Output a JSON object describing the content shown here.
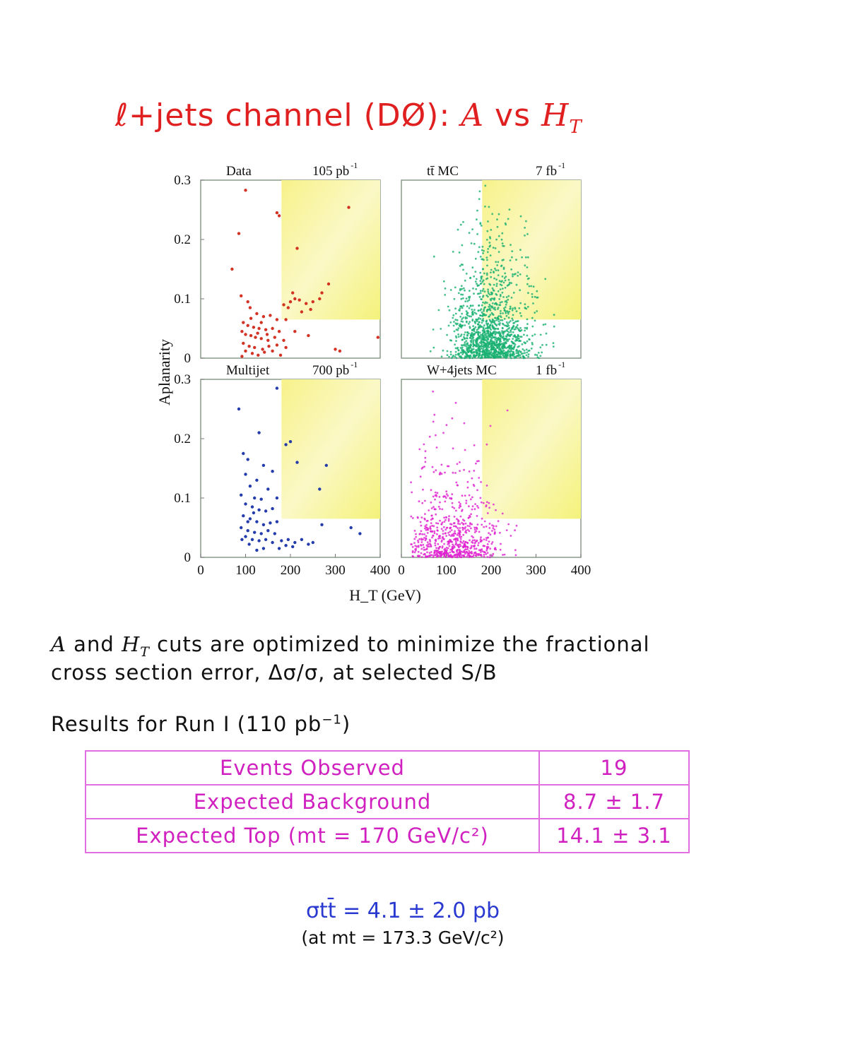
{
  "page": {
    "title": "ℓ+jets channel (DØ): A vs H",
    "title_parts": {
      "text": "ℓ+jets channel (DØ): ",
      "a": "A",
      "vs": " vs ",
      "h": "H",
      "sub": "T"
    },
    "description_line1": {
      "a": "A",
      "and": " and ",
      "h": "H",
      "sub": "T",
      "rest": " cuts are optimized to minimize the fractional"
    },
    "description_line2": "cross section error, Δσ/σ, at selected S/B",
    "results_heading": "Results for Run I (110 pb",
    "results_heading_sup": "−1",
    "results_heading_end": ")",
    "results_table": [
      {
        "label": "Events Observed",
        "value": "19"
      },
      {
        "label": "Expected Background",
        "value": "8.7 ± 1.7"
      },
      {
        "label": "Expected Top (mt = 170 GeV/c²)",
        "value": "14.1 ± 3.1"
      }
    ],
    "cross_section": "σtt̄ = 4.1 ± 2.0 pb",
    "cross_section_note": "(at mt = 173.3 GeV/c²)"
  },
  "colors": {
    "title": "#e02020",
    "table": "#d020c0",
    "xsec": "#2a3ad0",
    "cut_region": "#f4f27a"
  },
  "chart_data": {
    "type": "scatter",
    "xlabel": "H_T (GeV)",
    "ylabel": "Aplanarity",
    "x_ticks": [
      "0",
      "100",
      "200",
      "300",
      "400"
    ],
    "y_ticks": [
      "0",
      "0.1",
      "0.2",
      "0.3"
    ],
    "xlim": [
      0,
      400
    ],
    "ylim": [
      0,
      0.3
    ],
    "cut": {
      "ht_min": 180,
      "aplanarity_min": 0.065
    },
    "panels": [
      {
        "name": "Data",
        "lumi": "105 pb",
        "lumi_sup": "-1",
        "color": "#d02818",
        "points": [
          [
            100,
            0.283
          ],
          [
            85,
            0.21
          ],
          [
            70,
            0.15
          ],
          [
            90,
            0.105
          ],
          [
            105,
            0.095
          ],
          [
            110,
            0.085
          ],
          [
            125,
            0.075
          ],
          [
            140,
            0.07
          ],
          [
            155,
            0.072
          ],
          [
            170,
            0.065
          ],
          [
            95,
            0.06
          ],
          [
            105,
            0.055
          ],
          [
            118,
            0.052
          ],
          [
            130,
            0.05
          ],
          [
            145,
            0.048
          ],
          [
            160,
            0.05
          ],
          [
            175,
            0.045
          ],
          [
            92,
            0.045
          ],
          [
            100,
            0.04
          ],
          [
            112,
            0.038
          ],
          [
            122,
            0.035
          ],
          [
            135,
            0.033
          ],
          [
            150,
            0.03
          ],
          [
            165,
            0.035
          ],
          [
            185,
            0.03
          ],
          [
            95,
            0.025
          ],
          [
            108,
            0.02
          ],
          [
            120,
            0.018
          ],
          [
            138,
            0.015
          ],
          [
            152,
            0.02
          ],
          [
            170,
            0.022
          ],
          [
            190,
            0.018
          ],
          [
            100,
            0.012
          ],
          [
            115,
            0.008
          ],
          [
            128,
            0.005
          ],
          [
            142,
            0.01
          ],
          [
            160,
            0.012
          ],
          [
            178,
            0.005
          ],
          [
            92,
            0.003
          ],
          [
            200,
            0.095
          ],
          [
            210,
            0.1
          ],
          [
            220,
            0.098
          ],
          [
            235,
            0.092
          ],
          [
            250,
            0.095
          ],
          [
            265,
            0.1
          ],
          [
            185,
            0.09
          ],
          [
            195,
            0.085
          ],
          [
            205,
            0.11
          ],
          [
            225,
            0.078
          ],
          [
            245,
            0.082
          ],
          [
            270,
            0.11
          ],
          [
            285,
            0.125
          ],
          [
            170,
            0.245
          ],
          [
            175,
            0.24
          ],
          [
            215,
            0.185
          ],
          [
            330,
            0.254
          ],
          [
            190,
            0.065
          ],
          [
            240,
            0.038
          ],
          [
            210,
            0.045
          ],
          [
            300,
            0.015
          ],
          [
            310,
            0.012
          ],
          [
            395,
            0.035
          ],
          [
            135,
            0.06
          ],
          [
            148,
            0.04
          ],
          [
            112,
            0.067
          ],
          [
            127,
            0.042
          ]
        ]
      },
      {
        "name": "tt̄ MC",
        "lumi": "7 fb",
        "lumi_sup": "-1",
        "color": "#18b070",
        "generator": {
          "n": 1400,
          "x_mean": 200,
          "x_sd": 45,
          "y_scale": 0.055,
          "seed": 7
        }
      },
      {
        "name": "Multijet",
        "lumi": "700 pb",
        "lumi_sup": "-1",
        "color": "#1830a8",
        "points": [
          [
            85,
            0.25
          ],
          [
            170,
            0.285
          ],
          [
            130,
            0.21
          ],
          [
            95,
            0.175
          ],
          [
            105,
            0.165
          ],
          [
            140,
            0.155
          ],
          [
            160,
            0.145
          ],
          [
            100,
            0.14
          ],
          [
            125,
            0.13
          ],
          [
            110,
            0.12
          ],
          [
            150,
            0.115
          ],
          [
            90,
            0.105
          ],
          [
            120,
            0.1
          ],
          [
            135,
            0.098
          ],
          [
            170,
            0.1
          ],
          [
            100,
            0.09
          ],
          [
            115,
            0.085
          ],
          [
            130,
            0.08
          ],
          [
            145,
            0.078
          ],
          [
            160,
            0.082
          ],
          [
            95,
            0.07
          ],
          [
            110,
            0.065
          ],
          [
            125,
            0.06
          ],
          [
            140,
            0.055
          ],
          [
            155,
            0.058
          ],
          [
            170,
            0.06
          ],
          [
            90,
            0.05
          ],
          [
            105,
            0.045
          ],
          [
            120,
            0.042
          ],
          [
            135,
            0.04
          ],
          [
            150,
            0.045
          ],
          [
            165,
            0.04
          ],
          [
            100,
            0.035
          ],
          [
            115,
            0.03
          ],
          [
            130,
            0.028
          ],
          [
            145,
            0.03
          ],
          [
            160,
            0.025
          ],
          [
            180,
            0.028
          ],
          [
            195,
            0.03
          ],
          [
            210,
            0.025
          ],
          [
            225,
            0.03
          ],
          [
            240,
            0.022
          ],
          [
            250,
            0.025
          ],
          [
            190,
            0.02
          ],
          [
            205,
            0.018
          ],
          [
            175,
            0.015
          ],
          [
            140,
            0.015
          ],
          [
            125,
            0.012
          ],
          [
            270,
            0.055
          ],
          [
            280,
            0.155
          ],
          [
            335,
            0.05
          ],
          [
            355,
            0.04
          ],
          [
            190,
            0.19
          ],
          [
            200,
            0.195
          ],
          [
            265,
            0.115
          ],
          [
            215,
            0.16
          ],
          [
            105,
            0.06
          ],
          [
            118,
            0.075
          ],
          [
            92,
            0.03
          ],
          [
            108,
            0.022
          ]
        ]
      },
      {
        "name": "W+4jets MC",
        "lumi": "1 fb",
        "lumi_sup": "-1",
        "color": "#e020d0",
        "generator": {
          "n": 750,
          "x_mean": 115,
          "x_sd": 55,
          "y_scale": 0.045,
          "seed": 13
        }
      }
    ]
  }
}
